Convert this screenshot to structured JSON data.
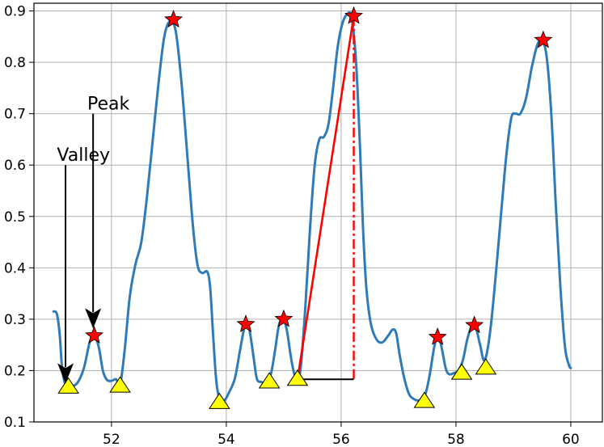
{
  "chart_data": {
    "type": "line",
    "xlim": [
      50.65,
      60.55
    ],
    "ylim": [
      0.1,
      0.915
    ],
    "grid": true,
    "xticks": [
      52,
      54,
      56,
      58,
      60
    ],
    "yticks": [
      0.1,
      0.2,
      0.3,
      0.4,
      0.5,
      0.6,
      0.7,
      0.8,
      0.9
    ],
    "xtick_labels": [
      "52",
      "54",
      "56",
      "58",
      "60"
    ],
    "ytick_labels": [
      "0.1",
      "0.2",
      "0.3",
      "0.4",
      "0.5",
      "0.6",
      "0.7",
      "0.8",
      "0.9"
    ],
    "colors": {
      "line": "#2f7bb8",
      "grid": "#b0b0b0",
      "peak_marker": "#ff0000",
      "valley_marker": "#ffff00",
      "highlight": "#ff0000",
      "connector": "#000000"
    },
    "series": [
      {
        "points": [
          [
            50.99,
            0.315
          ],
          [
            51.05,
            0.31
          ],
          [
            51.1,
            0.268
          ],
          [
            51.14,
            0.205
          ],
          [
            51.2,
            0.172
          ],
          [
            51.28,
            0.17
          ],
          [
            51.4,
            0.175
          ],
          [
            51.52,
            0.205
          ],
          [
            51.62,
            0.255
          ],
          [
            51.7,
            0.268
          ],
          [
            51.78,
            0.245
          ],
          [
            51.85,
            0.2
          ],
          [
            51.92,
            0.182
          ],
          [
            52.0,
            0.18
          ],
          [
            52.08,
            0.183
          ],
          [
            52.15,
            0.172
          ],
          [
            52.23,
            0.24
          ],
          [
            52.32,
            0.345
          ],
          [
            52.42,
            0.408
          ],
          [
            52.52,
            0.45
          ],
          [
            52.62,
            0.54
          ],
          [
            52.72,
            0.65
          ],
          [
            52.82,
            0.76
          ],
          [
            52.92,
            0.85
          ],
          [
            53.02,
            0.88
          ],
          [
            53.12,
            0.86
          ],
          [
            53.22,
            0.76
          ],
          [
            53.32,
            0.62
          ],
          [
            53.42,
            0.48
          ],
          [
            53.5,
            0.405
          ],
          [
            53.58,
            0.39
          ],
          [
            53.67,
            0.392
          ],
          [
            53.72,
            0.36
          ],
          [
            53.77,
            0.27
          ],
          [
            53.83,
            0.175
          ],
          [
            53.9,
            0.142
          ],
          [
            53.97,
            0.142
          ],
          [
            54.05,
            0.158
          ],
          [
            54.15,
            0.185
          ],
          [
            54.24,
            0.24
          ],
          [
            54.33,
            0.29
          ],
          [
            54.4,
            0.28
          ],
          [
            54.47,
            0.23
          ],
          [
            54.53,
            0.185
          ],
          [
            54.6,
            0.178
          ],
          [
            54.7,
            0.178
          ],
          [
            54.78,
            0.195
          ],
          [
            54.85,
            0.24
          ],
          [
            54.92,
            0.29
          ],
          [
            55.0,
            0.3
          ],
          [
            55.06,
            0.275
          ],
          [
            55.12,
            0.23
          ],
          [
            55.18,
            0.195
          ],
          [
            55.24,
            0.183
          ],
          [
            55.3,
            0.21
          ],
          [
            55.38,
            0.33
          ],
          [
            55.46,
            0.48
          ],
          [
            55.54,
            0.6
          ],
          [
            55.62,
            0.65
          ],
          [
            55.7,
            0.655
          ],
          [
            55.78,
            0.68
          ],
          [
            55.86,
            0.75
          ],
          [
            55.94,
            0.83
          ],
          [
            56.02,
            0.875
          ],
          [
            56.1,
            0.893
          ],
          [
            56.18,
            0.888
          ],
          [
            56.26,
            0.8
          ],
          [
            56.33,
            0.63
          ],
          [
            56.38,
            0.48
          ],
          [
            56.44,
            0.36
          ],
          [
            56.52,
            0.29
          ],
          [
            56.62,
            0.26
          ],
          [
            56.72,
            0.255
          ],
          [
            56.82,
            0.268
          ],
          [
            56.9,
            0.28
          ],
          [
            56.96,
            0.272
          ],
          [
            57.02,
            0.23
          ],
          [
            57.1,
            0.185
          ],
          [
            57.18,
            0.155
          ],
          [
            57.26,
            0.145
          ],
          [
            57.36,
            0.142
          ],
          [
            57.46,
            0.152
          ],
          [
            57.54,
            0.19
          ],
          [
            57.62,
            0.245
          ],
          [
            57.68,
            0.265
          ],
          [
            57.74,
            0.25
          ],
          [
            57.82,
            0.205
          ],
          [
            57.88,
            0.193
          ],
          [
            57.96,
            0.195
          ],
          [
            58.04,
            0.2
          ],
          [
            58.12,
            0.22
          ],
          [
            58.2,
            0.262
          ],
          [
            58.28,
            0.288
          ],
          [
            58.35,
            0.282
          ],
          [
            58.42,
            0.25
          ],
          [
            58.5,
            0.22
          ],
          [
            58.6,
            0.28
          ],
          [
            58.72,
            0.42
          ],
          [
            58.86,
            0.6
          ],
          [
            58.96,
            0.69
          ],
          [
            59.04,
            0.7
          ],
          [
            59.12,
            0.7
          ],
          [
            59.22,
            0.73
          ],
          [
            59.32,
            0.79
          ],
          [
            59.42,
            0.835
          ],
          [
            59.5,
            0.843
          ],
          [
            59.58,
            0.81
          ],
          [
            59.66,
            0.7
          ],
          [
            59.74,
            0.52
          ],
          [
            59.82,
            0.36
          ],
          [
            59.9,
            0.245
          ],
          [
            59.97,
            0.21
          ],
          [
            60.0,
            0.205
          ]
        ]
      }
    ],
    "peaks": [
      [
        51.7,
        0.268
      ],
      [
        53.08,
        0.883
      ],
      [
        54.34,
        0.29
      ],
      [
        55.0,
        0.3
      ],
      [
        56.22,
        0.89
      ],
      [
        57.68,
        0.265
      ],
      [
        58.32,
        0.288
      ],
      [
        59.52,
        0.843
      ]
    ],
    "valleys": [
      [
        51.25,
        0.168
      ],
      [
        52.15,
        0.17
      ],
      [
        53.88,
        0.138
      ],
      [
        54.75,
        0.178
      ],
      [
        55.24,
        0.183
      ],
      [
        57.45,
        0.14
      ],
      [
        58.1,
        0.195
      ],
      [
        58.52,
        0.205
      ]
    ],
    "highlight": {
      "valley": [
        55.24,
        0.183
      ],
      "peak": [
        56.22,
        0.89
      ],
      "corner": [
        56.22,
        0.183
      ]
    },
    "annotations": [
      {
        "id": "valley",
        "text": "Valley",
        "text_xy": [
          51.05,
          0.608
        ],
        "arrow_from": [
          51.2,
          0.6
        ],
        "arrow_to": [
          51.2,
          0.175
        ]
      },
      {
        "id": "peak",
        "text": "Peak",
        "text_xy": [
          51.58,
          0.708
        ],
        "arrow_from": [
          51.68,
          0.7
        ],
        "arrow_to": [
          51.68,
          0.282
        ]
      }
    ]
  }
}
